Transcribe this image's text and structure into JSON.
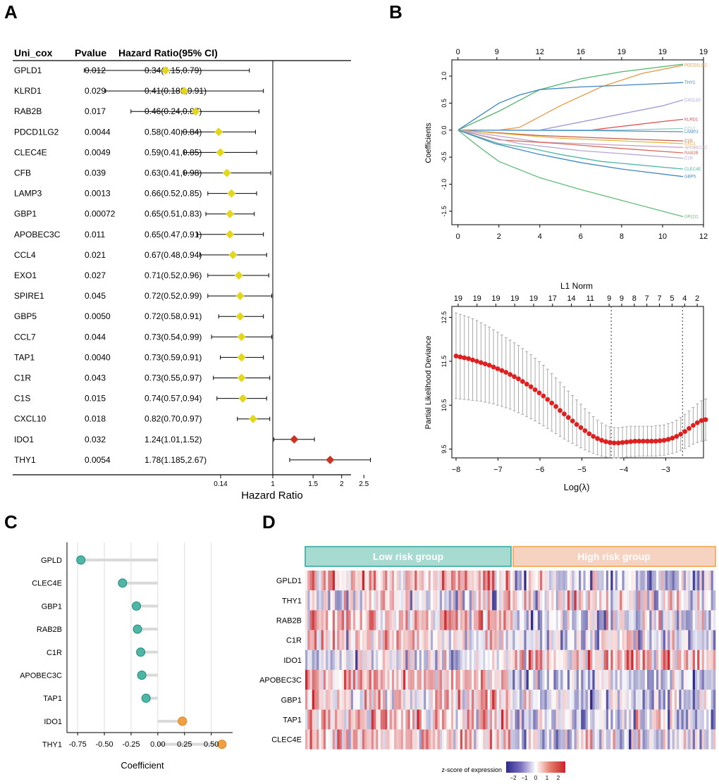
{
  "panel_labels": {
    "a": "A",
    "b": "B",
    "c": "C",
    "d": "D"
  },
  "colors": {
    "protective": "#e3d61c",
    "risk": "#cc3322",
    "low_fill": "#4fb6a6",
    "high_fill": "#f0a040",
    "low_group": "#a7dbd2",
    "high_group": "#f6d3c0"
  },
  "chart_data": [
    {
      "type": "forest",
      "panel": "A",
      "headers": {
        "gene": "Uni_cox",
        "p": "Pvalue",
        "hr": "Hazard Ratio(95% CI)"
      },
      "x_scale": "log",
      "xticks": [
        "0.14",
        "1",
        "1.5",
        "2",
        "2.5"
      ],
      "xtick_values": [
        0.14,
        1,
        1.5,
        2,
        2.5
      ],
      "xlabel": "Hazard Ratio",
      "rows": [
        {
          "gene": "GPLD1",
          "p": "0.012",
          "ci_text": "0.34(0.15,0.79)",
          "hr": 0.34,
          "lo": 0.15,
          "hi": 0.79
        },
        {
          "gene": "KLRD1",
          "p": "0.029",
          "ci_text": "0.41(0.186,0.91)",
          "hr": 0.41,
          "lo": 0.186,
          "hi": 0.91
        },
        {
          "gene": "RAB2B",
          "p": "0.017",
          "ci_text": "0.46(0.24,0.87)",
          "hr": 0.46,
          "lo": 0.24,
          "hi": 0.87
        },
        {
          "gene": "PDCD1LG2",
          "p": "0.0044",
          "ci_text": "0.58(0.40,0.84)",
          "hr": 0.58,
          "lo": 0.4,
          "hi": 0.84
        },
        {
          "gene": "CLEC4E",
          "p": "0.0049",
          "ci_text": "0.59(0.41,0.85)",
          "hr": 0.59,
          "lo": 0.41,
          "hi": 0.85
        },
        {
          "gene": "CFB",
          "p": "0.039",
          "ci_text": "0.63(0.41,0.98)",
          "hr": 0.63,
          "lo": 0.41,
          "hi": 0.98
        },
        {
          "gene": "LAMP3",
          "p": "0.0013",
          "ci_text": "0.66(0.52,0.85)",
          "hr": 0.66,
          "lo": 0.52,
          "hi": 0.85
        },
        {
          "gene": "GBP1",
          "p": "0.00072",
          "ci_text": "0.65(0.51,0.83)",
          "hr": 0.65,
          "lo": 0.51,
          "hi": 0.83
        },
        {
          "gene": "APOBEC3C",
          "p": "0.011",
          "ci_text": "0.65(0.47,0.91)",
          "hr": 0.65,
          "lo": 0.47,
          "hi": 0.91
        },
        {
          "gene": "CCL4",
          "p": "0.021",
          "ci_text": "0.67(0.48,0.94)",
          "hr": 0.67,
          "lo": 0.48,
          "hi": 0.94
        },
        {
          "gene": "EXO1",
          "p": "0.027",
          "ci_text": "0.71(0.52,0.96)",
          "hr": 0.71,
          "lo": 0.52,
          "hi": 0.96
        },
        {
          "gene": "SPIRE1",
          "p": "0.045",
          "ci_text": "0.72(0.52,0.99)",
          "hr": 0.72,
          "lo": 0.52,
          "hi": 0.99
        },
        {
          "gene": "GBP5",
          "p": "0.0050",
          "ci_text": "0.72(0.58,0.91)",
          "hr": 0.72,
          "lo": 0.58,
          "hi": 0.91
        },
        {
          "gene": "CCL7",
          "p": "0.044",
          "ci_text": "0.73(0.54,0.99)",
          "hr": 0.73,
          "lo": 0.54,
          "hi": 0.99
        },
        {
          "gene": "TAP1",
          "p": "0.0040",
          "ci_text": "0.73(0.59,0.91)",
          "hr": 0.73,
          "lo": 0.59,
          "hi": 0.91
        },
        {
          "gene": "C1R",
          "p": "0.043",
          "ci_text": "0.73(0.55,0.97)",
          "hr": 0.73,
          "lo": 0.55,
          "hi": 0.97
        },
        {
          "gene": "C1S",
          "p": "0.015",
          "ci_text": "0.74(0.57,0.94)",
          "hr": 0.74,
          "lo": 0.57,
          "hi": 0.94
        },
        {
          "gene": "CXCL10",
          "p": "0.018",
          "ci_text": "0.82(0.70,0.97)",
          "hr": 0.82,
          "lo": 0.7,
          "hi": 0.97
        },
        {
          "gene": "IDO1",
          "p": "0.032",
          "ci_text": "1.24(1.01,1.52)",
          "hr": 1.24,
          "lo": 1.01,
          "hi": 1.52
        },
        {
          "gene": "THY1",
          "p": "0.0054",
          "ci_text": "1.78(1.185,2.67)",
          "hr": 1.78,
          "lo": 1.185,
          "hi": 2.67
        }
      ]
    },
    {
      "type": "line",
      "panel": "B-top",
      "title": "L1 Norm",
      "ylabel": "Coefficients",
      "xlim": [
        -0.3,
        12
      ],
      "ylim": [
        -1.75,
        1.3
      ],
      "xticks": [
        0,
        2,
        4,
        6,
        8,
        10,
        12
      ],
      "yticks": [
        -1.5,
        -1.0,
        -0.5,
        0.0,
        0.5,
        1.0
      ],
      "top_ticks_x": [
        0,
        1.9,
        4,
        6,
        8,
        10,
        12
      ],
      "top_ticks_labels": [
        "0",
        "9",
        "12",
        "16",
        "19",
        "19",
        "19"
      ],
      "series": [
        {
          "name": "PDCD1LG2",
          "color": "#e89844",
          "points": [
            [
              0,
              0
            ],
            [
              2,
              0
            ],
            [
              3,
              0.05
            ],
            [
              5,
              0.45
            ],
            [
              7,
              0.8
            ],
            [
              9,
              1.05
            ],
            [
              11,
              1.2
            ]
          ]
        },
        {
          "name": "KLRD1 (top)",
          "label": "",
          "color": "#4fb36a",
          "points": [
            [
              0,
              0
            ],
            [
              2,
              0.35
            ],
            [
              4,
              0.75
            ],
            [
              6,
              0.95
            ],
            [
              8,
              1.08
            ],
            [
              11,
              1.22
            ]
          ]
        },
        {
          "name": "THY1",
          "color": "#3f86c2",
          "points": [
            [
              0,
              0
            ],
            [
              1,
              0.25
            ],
            [
              2,
              0.5
            ],
            [
              3,
              0.65
            ],
            [
              4,
              0.75
            ],
            [
              6,
              0.8
            ],
            [
              8,
              0.83
            ],
            [
              11,
              0.88
            ]
          ]
        },
        {
          "name": "CXCL10",
          "color": "#a49ad0",
          "points": [
            [
              0,
              0
            ],
            [
              4,
              0
            ],
            [
              6,
              0.15
            ],
            [
              8,
              0.3
            ],
            [
              10,
              0.45
            ],
            [
              11,
              0.56
            ]
          ]
        },
        {
          "name": "KLRD1",
          "color": "#d9534f",
          "points": [
            [
              0,
              0
            ],
            [
              6.5,
              0
            ],
            [
              8,
              0.07
            ],
            [
              10,
              0.16
            ],
            [
              11,
              0.2
            ]
          ]
        },
        {
          "name": "CCL7",
          "color": "#8fc9bf",
          "points": [
            [
              0,
              0
            ],
            [
              8,
              0
            ],
            [
              11,
              0.03
            ]
          ]
        },
        {
          "name": "LAMP3",
          "color": "#4b8fd0",
          "points": [
            [
              0,
              0
            ],
            [
              7,
              -0.01
            ],
            [
              11,
              -0.03
            ]
          ]
        },
        {
          "name": "C1S",
          "color": "#c85a4a",
          "points": [
            [
              0,
              0
            ],
            [
              4,
              -0.1
            ],
            [
              8,
              -0.16
            ],
            [
              11,
              -0.2
            ]
          ]
        },
        {
          "name": "EXO1",
          "color": "#e0b83e",
          "points": [
            [
              0,
              0
            ],
            [
              5,
              -0.15
            ],
            [
              11,
              -0.25
            ]
          ]
        },
        {
          "name": "APOBEC3C",
          "color": "#c9a5c5",
          "points": [
            [
              0,
              0
            ],
            [
              4,
              -0.22
            ],
            [
              8,
              -0.28
            ],
            [
              11,
              -0.32
            ]
          ]
        },
        {
          "name": "RAB2B",
          "color": "#d96a5a",
          "points": [
            [
              0,
              0
            ],
            [
              2,
              -0.18
            ],
            [
              5,
              -0.25
            ],
            [
              8,
              -0.34
            ],
            [
              11,
              -0.42
            ]
          ]
        },
        {
          "name": "C1R",
          "color": "#b8a5d8",
          "points": [
            [
              0,
              0
            ],
            [
              3,
              -0.25
            ],
            [
              6,
              -0.38
            ],
            [
              11,
              -0.52
            ]
          ]
        },
        {
          "name": "CLEC4E",
          "color": "#4fb6a6",
          "points": [
            [
              0,
              0
            ],
            [
              2,
              -0.25
            ],
            [
              3.5,
              -0.33
            ],
            [
              5,
              -0.45
            ],
            [
              7,
              -0.58
            ],
            [
              11,
              -0.72
            ]
          ]
        },
        {
          "name": "GBP5",
          "color": "#3f86c2",
          "points": [
            [
              0,
              0
            ],
            [
              1.8,
              -0.25
            ],
            [
              4,
              -0.45
            ],
            [
              6,
              -0.6
            ],
            [
              8,
              -0.72
            ],
            [
              11,
              -0.86
            ]
          ]
        },
        {
          "name": "GPLD1",
          "color": "#63bb78",
          "points": [
            [
              0,
              0
            ],
            [
              1,
              -0.3
            ],
            [
              2,
              -0.58
            ],
            [
              4,
              -0.88
            ],
            [
              6,
              -1.1
            ],
            [
              8,
              -1.3
            ],
            [
              11,
              -1.6
            ]
          ]
        }
      ]
    },
    {
      "type": "scatter-errorbar",
      "panel": "B-bottom",
      "xlabel": "Log(λ)",
      "ylabel": "Partial Likelihood Deviance",
      "xlim": [
        -8.1,
        -2.1
      ],
      "ylim": [
        9.3,
        12.75
      ],
      "xticks": [
        -8,
        -7,
        -6,
        -5,
        -4,
        -3
      ],
      "yticks": [
        9.5,
        10.5,
        11.5,
        12.5
      ],
      "vlines": [
        -4.3,
        -2.6
      ],
      "top_ticks_x": [
        -7.95,
        -7.5,
        -7.05,
        -6.6,
        -6.15,
        -5.7,
        -5.25,
        -4.8,
        -4.35,
        -4.05,
        -3.75,
        -3.45,
        -3.15,
        -2.85,
        -2.55,
        -2.25
      ],
      "top_ticks_labels": [
        "19",
        "19",
        "19",
        "19",
        "19",
        "17",
        "14",
        "11",
        "9",
        "9",
        "8",
        "7",
        "7",
        "5",
        "4",
        "2"
      ],
      "points_x_start": -8.0,
      "points_x_step": 0.0992,
      "means": [
        11.62,
        11.6,
        11.58,
        11.56,
        11.53,
        11.5,
        11.47,
        11.44,
        11.41,
        11.37,
        11.33,
        11.29,
        11.25,
        11.2,
        11.15,
        11.1,
        11.04,
        10.98,
        10.92,
        10.85,
        10.78,
        10.71,
        10.63,
        10.55,
        10.47,
        10.38,
        10.3,
        10.22,
        10.14,
        10.06,
        9.99,
        9.92,
        9.85,
        9.79,
        9.74,
        9.7,
        9.67,
        9.65,
        9.64,
        9.64,
        9.65,
        9.66,
        9.67,
        9.68,
        9.68,
        9.68,
        9.68,
        9.68,
        9.68,
        9.69,
        9.7,
        9.72,
        9.75,
        9.79,
        9.84,
        9.9,
        9.97,
        10.04,
        10.1,
        10.15,
        10.17
      ],
      "err_lower": [
        10.65,
        10.64,
        10.63,
        10.62,
        10.61,
        10.6,
        10.59,
        10.57,
        10.55,
        10.53,
        10.5,
        10.47,
        10.44,
        10.41,
        10.37,
        10.33,
        10.29,
        10.24,
        10.19,
        10.14,
        10.08,
        10.03,
        9.97,
        9.91,
        9.85,
        9.79,
        9.73,
        9.68,
        9.63,
        9.58,
        9.53,
        9.48,
        9.44,
        9.4,
        9.37,
        9.34,
        9.32,
        9.31,
        9.3,
        9.3,
        9.31,
        9.32,
        9.33,
        9.33,
        9.34,
        9.34,
        9.34,
        9.34,
        9.34,
        9.35,
        9.36,
        9.38,
        9.4,
        9.43,
        9.47,
        9.51,
        9.56,
        9.61,
        9.65,
        9.68,
        9.7
      ],
      "err_upper": [
        12.6,
        12.57,
        12.54,
        12.51,
        12.47,
        12.43,
        12.38,
        12.33,
        12.28,
        12.22,
        12.16,
        12.1,
        12.04,
        11.98,
        11.92,
        11.86,
        11.79,
        11.72,
        11.65,
        11.57,
        11.49,
        11.41,
        11.32,
        11.22,
        11.12,
        11.02,
        10.92,
        10.82,
        10.72,
        10.62,
        10.52,
        10.42,
        10.33,
        10.24,
        10.16,
        10.09,
        10.04,
        10.01,
        9.99,
        9.99,
        10.0,
        10.01,
        10.02,
        10.02,
        10.02,
        10.02,
        10.02,
        10.02,
        10.03,
        10.04,
        10.05,
        10.08,
        10.11,
        10.16,
        10.22,
        10.29,
        10.37,
        10.45,
        10.53,
        10.6,
        10.64
      ]
    },
    {
      "type": "lollipop",
      "panel": "C",
      "xlabel": "Coefficient",
      "xlim": [
        -0.85,
        0.7
      ],
      "xticks": [
        -0.75,
        -0.5,
        -0.25,
        0.0,
        0.25,
        0.5
      ],
      "xtick_labels": [
        "-0.75",
        "-0.50",
        "-0.25",
        "0.00",
        "0.25",
        "0.50"
      ],
      "categories": [
        "GPLD",
        "CLEC4E",
        "GBP1",
        "RAB2B",
        "C1R",
        "APOBEC3C",
        "TAP1",
        "IDO1",
        "THY1"
      ],
      "values": [
        -0.72,
        -0.33,
        -0.2,
        -0.19,
        -0.16,
        -0.15,
        -0.11,
        0.23,
        0.6
      ]
    },
    {
      "type": "heatmap",
      "panel": "D",
      "groups": [
        {
          "label": "Low risk group",
          "fraction": 0.506
        },
        {
          "label": "High risk group",
          "fraction": 0.494
        }
      ],
      "rows": [
        "GPLD1",
        "THY1",
        "RAB2B",
        "C1R",
        "IDO1",
        "APOBEC3C",
        "GBP1",
        "TAP1",
        "CLEC4E"
      ],
      "n_columns": 180,
      "row_bias_low": [
        0.9,
        -0.2,
        0.6,
        0.4,
        -0.4,
        0.7,
        0.5,
        0.6,
        0.5
      ],
      "row_bias_high": [
        -0.6,
        0.2,
        -0.5,
        -0.4,
        0.8,
        -0.6,
        -0.5,
        -0.5,
        -0.5
      ],
      "legend": {
        "title": "z-score of expression",
        "ticks": [
          "−2",
          "−1",
          "0",
          "1",
          "2"
        ],
        "colors": [
          "#2c2a8a",
          "#7b6fc0",
          "#ffffff",
          "#e57a6b",
          "#c8242a"
        ]
      }
    }
  ]
}
